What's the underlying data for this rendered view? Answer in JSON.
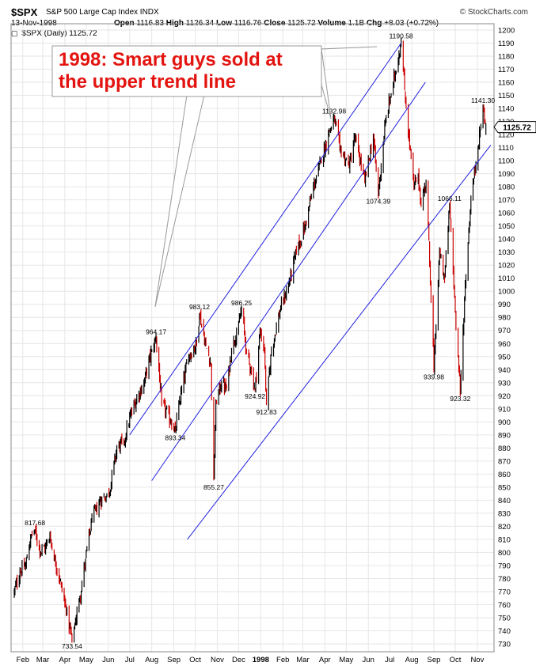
{
  "header": {
    "symbol": "$SPX",
    "description": "S&P 500 Large Cap Index INDX",
    "brand": "© StockCharts.com",
    "date": "13-Nov-1998",
    "open_label": "Open",
    "open": "1116.83",
    "high_label": "High",
    "high": "1126.34",
    "low_label": "Low",
    "low": "1116.76",
    "close_label": "Close",
    "close": "1125.72",
    "volume_label": "Volume",
    "volume": "1.1B",
    "chg_label": "Chg",
    "chg": "+8.03 (+0.72%)",
    "legend": "$SPX (Daily) 1125.72"
  },
  "annotation": {
    "line1": "1998: Smart guys sold at",
    "line2": "the upper trend line"
  },
  "colors": {
    "up": "#000000",
    "down": "#cc0000",
    "trend": "#2020e0",
    "grid": "#e6e6e6",
    "callout_text": "#e3140f"
  },
  "chart_data": {
    "type": "candlestick",
    "xlabel": "",
    "ylabel": "",
    "ylim": [
      730,
      1200
    ],
    "xlim": [
      "1997-01-20",
      "1998-11-20"
    ],
    "y_ticks": [
      730,
      740,
      750,
      760,
      770,
      780,
      790,
      800,
      810,
      820,
      830,
      840,
      850,
      860,
      870,
      880,
      890,
      900,
      910,
      920,
      930,
      940,
      950,
      960,
      970,
      980,
      990,
      1000,
      1010,
      1020,
      1030,
      1040,
      1050,
      1060,
      1070,
      1080,
      1090,
      1100,
      1110,
      1120,
      1130,
      1140,
      1150,
      1160,
      1170,
      1180,
      1190,
      1200
    ],
    "x_ticks": [
      {
        "label": "Feb",
        "date": "1997-02-01",
        "bold": false
      },
      {
        "label": "Mar",
        "date": "1997-03-01",
        "bold": false
      },
      {
        "label": "Apr",
        "date": "1997-04-01",
        "bold": false
      },
      {
        "label": "May",
        "date": "1997-05-01",
        "bold": false
      },
      {
        "label": "Jun",
        "date": "1997-06-01",
        "bold": false
      },
      {
        "label": "Jul",
        "date": "1997-07-01",
        "bold": false
      },
      {
        "label": "Aug",
        "date": "1997-08-01",
        "bold": false
      },
      {
        "label": "Sep",
        "date": "1997-09-01",
        "bold": false
      },
      {
        "label": "Oct",
        "date": "1997-10-01",
        "bold": false
      },
      {
        "label": "Nov",
        "date": "1997-11-01",
        "bold": false
      },
      {
        "label": "Dec",
        "date": "1997-12-01",
        "bold": false
      },
      {
        "label": "1998",
        "date": "1998-01-01",
        "bold": true
      },
      {
        "label": "Feb",
        "date": "1998-02-01",
        "bold": false
      },
      {
        "label": "Mar",
        "date": "1998-03-01",
        "bold": false
      },
      {
        "label": "Apr",
        "date": "1998-04-01",
        "bold": false
      },
      {
        "label": "May",
        "date": "1998-05-01",
        "bold": false
      },
      {
        "label": "Jun",
        "date": "1998-06-01",
        "bold": false
      },
      {
        "label": "Jul",
        "date": "1998-07-01",
        "bold": false
      },
      {
        "label": "Aug",
        "date": "1998-08-01",
        "bold": false
      },
      {
        "label": "Sep",
        "date": "1998-09-01",
        "bold": false
      },
      {
        "label": "Oct",
        "date": "1998-10-01",
        "bold": false
      },
      {
        "label": "Nov",
        "date": "1998-11-01",
        "bold": false
      }
    ],
    "price_path": [
      [
        "1997-01-20",
        770
      ],
      [
        "1997-01-28",
        785
      ],
      [
        "1997-02-05",
        790
      ],
      [
        "1997-02-12",
        812
      ],
      [
        "1997-02-18",
        817.68
      ],
      [
        "1997-02-26",
        800
      ],
      [
        "1997-03-05",
        805
      ],
      [
        "1997-03-11",
        812
      ],
      [
        "1997-03-18",
        795
      ],
      [
        "1997-03-27",
        775
      ],
      [
        "1997-04-03",
        755
      ],
      [
        "1997-04-11",
        733.54
      ],
      [
        "1997-04-22",
        765
      ],
      [
        "1997-04-30",
        795
      ],
      [
        "1997-05-09",
        825
      ],
      [
        "1997-05-21",
        840
      ],
      [
        "1997-06-02",
        845
      ],
      [
        "1997-06-13",
        880
      ],
      [
        "1997-06-23",
        885
      ],
      [
        "1997-07-02",
        905
      ],
      [
        "1997-07-11",
        918
      ],
      [
        "1997-07-21",
        930
      ],
      [
        "1997-08-01",
        955
      ],
      [
        "1997-08-07",
        964.17
      ],
      [
        "1997-08-15",
        915
      ],
      [
        "1997-08-28",
        900
      ],
      [
        "1997-09-03",
        893.34
      ],
      [
        "1997-09-12",
        925
      ],
      [
        "1997-09-22",
        950
      ],
      [
        "1997-10-03",
        960
      ],
      [
        "1997-10-07",
        983.12
      ],
      [
        "1997-10-16",
        958
      ],
      [
        "1997-10-23",
        945
      ],
      [
        "1997-10-27",
        855.27
      ],
      [
        "1997-10-30",
        915
      ],
      [
        "1997-11-07",
        930
      ],
      [
        "1997-11-14",
        925
      ],
      [
        "1997-11-21",
        955
      ],
      [
        "1997-12-01",
        975
      ],
      [
        "1997-12-05",
        986.25
      ],
      [
        "1997-12-12",
        955
      ],
      [
        "1997-12-18",
        940
      ],
      [
        "1997-12-24",
        924.92
      ],
      [
        "1997-12-31",
        970
      ],
      [
        "1998-01-06",
        955
      ],
      [
        "1998-01-09",
        912.83
      ],
      [
        "1998-01-16",
        955
      ],
      [
        "1998-01-28",
        985
      ],
      [
        "1998-02-09",
        1005
      ],
      [
        "1998-02-20",
        1030
      ],
      [
        "1998-03-04",
        1050
      ],
      [
        "1998-03-16",
        1080
      ],
      [
        "1998-03-27",
        1100
      ],
      [
        "1998-04-06",
        1120
      ],
      [
        "1998-04-14",
        1132.98
      ],
      [
        "1998-04-22",
        1110
      ],
      [
        "1998-05-05",
        1095
      ],
      [
        "1998-05-13",
        1118
      ],
      [
        "1998-05-27",
        1085
      ],
      [
        "1998-06-08",
        1118
      ],
      [
        "1998-06-15",
        1074.39
      ],
      [
        "1998-06-25",
        1130
      ],
      [
        "1998-07-06",
        1160
      ],
      [
        "1998-07-17",
        1190.58
      ],
      [
        "1998-07-24",
        1140
      ],
      [
        "1998-08-04",
        1080
      ],
      [
        "1998-08-10",
        1090
      ],
      [
        "1998-08-14",
        1065
      ],
      [
        "1998-08-21",
        1085
      ],
      [
        "1998-08-31",
        960
      ],
      [
        "1998-09-01",
        939.98
      ],
      [
        "1998-09-09",
        1030
      ],
      [
        "1998-09-16",
        1010
      ],
      [
        "1998-09-23",
        1066.11
      ],
      [
        "1998-10-01",
        985
      ],
      [
        "1998-10-08",
        923.32
      ],
      [
        "1998-10-15",
        1005
      ],
      [
        "1998-10-23",
        1070
      ],
      [
        "1998-11-02",
        1110
      ],
      [
        "1998-11-09",
        1141.3
      ],
      [
        "1998-11-13",
        1125.72
      ]
    ],
    "last_value": "1125.72",
    "peak_labels": [
      {
        "text": "817.68",
        "date": "1997-02-18",
        "value": 817.68,
        "pos": "above"
      },
      {
        "text": "733.54",
        "date": "1997-04-11",
        "value": 733.54,
        "pos": "below"
      },
      {
        "text": "964.17",
        "date": "1997-08-07",
        "value": 964.17,
        "pos": "above"
      },
      {
        "text": "893.34",
        "date": "1997-09-03",
        "value": 893.34,
        "pos": "below"
      },
      {
        "text": "983.12",
        "date": "1997-10-07",
        "value": 983.12,
        "pos": "above"
      },
      {
        "text": "855.27",
        "date": "1997-10-27",
        "value": 855.27,
        "pos": "below"
      },
      {
        "text": "986.25",
        "date": "1997-12-05",
        "value": 986.25,
        "pos": "above"
      },
      {
        "text": "924.92",
        "date": "1997-12-24",
        "value": 924.92,
        "pos": "below"
      },
      {
        "text": "912.83",
        "date": "1998-01-09",
        "value": 912.83,
        "pos": "below"
      },
      {
        "text": "1132.98",
        "date": "1998-04-14",
        "value": 1132.98,
        "pos": "above"
      },
      {
        "text": "1074.39",
        "date": "1998-06-15",
        "value": 1074.39,
        "pos": "below"
      },
      {
        "text": "1190.58",
        "date": "1998-07-17",
        "value": 1190.58,
        "pos": "above"
      },
      {
        "text": "939.98",
        "date": "1998-09-01",
        "value": 939.98,
        "pos": "below"
      },
      {
        "text": "1066.11",
        "date": "1998-09-23",
        "value": 1066.11,
        "pos": "above"
      },
      {
        "text": "923.32",
        "date": "1998-10-08",
        "value": 923.32,
        "pos": "below"
      },
      {
        "text": "1141.30",
        "date": "1998-11-09",
        "value": 1141.3,
        "pos": "above"
      }
    ],
    "trend_lines": [
      {
        "name": "upper",
        "start": [
          "1997-07-01",
          890
        ],
        "end": [
          "1998-07-17",
          1190
        ]
      },
      {
        "name": "middle",
        "start": [
          "1997-08-01",
          855
        ],
        "end": [
          "1998-08-20",
          1160
        ]
      },
      {
        "name": "lower",
        "start": [
          "1997-09-20",
          810
        ],
        "end": [
          "1998-11-20",
          1112
        ]
      }
    ]
  }
}
